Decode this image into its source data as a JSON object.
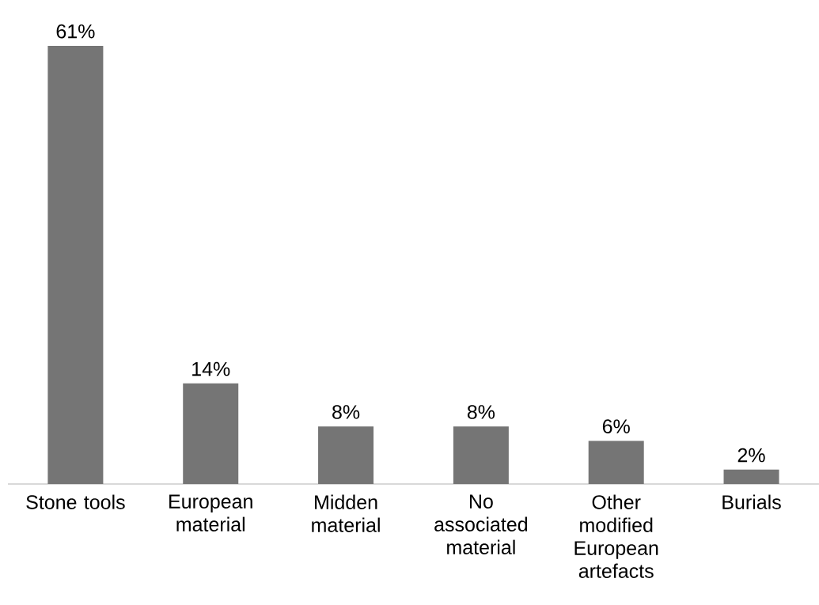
{
  "chart_data": {
    "type": "bar",
    "categories": [
      "Stone tools",
      "European material",
      "Midden material",
      "No associated material",
      "Other modified European artefacts",
      "Burials"
    ],
    "values": [
      61,
      14,
      8,
      8,
      6,
      2
    ],
    "value_labels": [
      "61%",
      "14%",
      "8%",
      "8%",
      "6%",
      "2%"
    ],
    "color": "#757575"
  }
}
